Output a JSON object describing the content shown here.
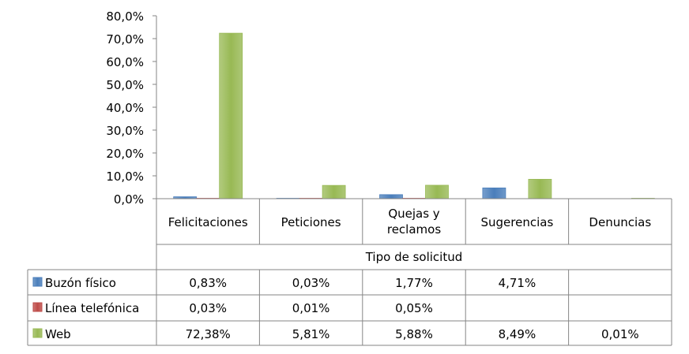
{
  "chart_data": {
    "type": "bar",
    "xlabel": "Tipo de solicitud",
    "ylabel": "",
    "ylim": [
      0,
      80
    ],
    "yticks": [
      "0,0%",
      "10,0%",
      "20,0%",
      "30,0%",
      "40,0%",
      "50,0%",
      "60,0%",
      "70,0%",
      "80,0%"
    ],
    "categories": [
      "Felicitaciones",
      "Peticiones",
      "Quejas y reclamos",
      "Sugerencias",
      "Denuncias"
    ],
    "category_lines": [
      [
        "Felicitaciones"
      ],
      [
        "Peticiones"
      ],
      [
        "Quejas y",
        "reclamos"
      ],
      [
        "Sugerencias"
      ],
      [
        "Denuncias"
      ]
    ],
    "legend": "data-table",
    "grid": false,
    "series": [
      {
        "name": "Buzón físico",
        "color": "#4a7ebb",
        "values": [
          0.83,
          0.03,
          1.77,
          4.71,
          null
        ],
        "labels": [
          "0,83%",
          "0,03%",
          "1,77%",
          "4,71%",
          ""
        ]
      },
      {
        "name": "Línea telefónica",
        "color": "#be4b48",
        "values": [
          0.03,
          0.01,
          0.05,
          null,
          null
        ],
        "labels": [
          "0,03%",
          "0,01%",
          "0,05%",
          "",
          ""
        ]
      },
      {
        "name": "Web",
        "color": "#98b954",
        "values": [
          72.38,
          5.81,
          5.88,
          8.49,
          0.01
        ],
        "labels": [
          "72,38%",
          "5,81%",
          "5,88%",
          "8,49%",
          "0,01%"
        ]
      }
    ]
  }
}
